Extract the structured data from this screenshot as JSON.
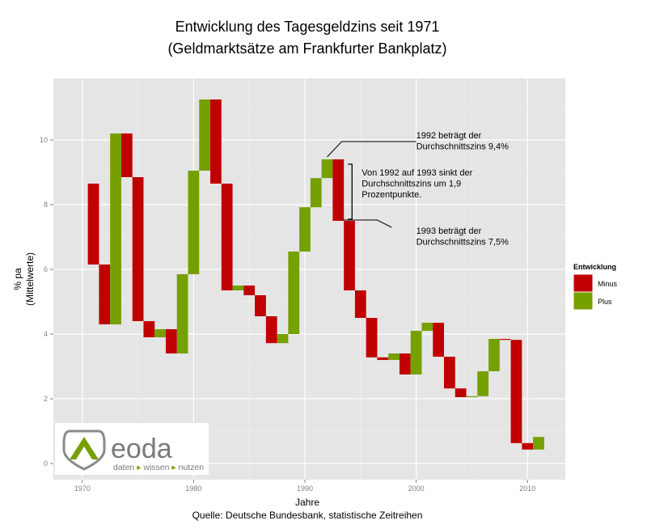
{
  "chart_data": {
    "type": "waterfall",
    "title": "Entwicklung des Tagesgeldzins seit 1971",
    "subtitle": "(Geldmarktsätze am Frankfurter Bankplatz)",
    "xlabel": "Jahre",
    "ylabel": "% pa",
    "ylabel_sub": "(Mittelwerte)",
    "source": "Quelle: Deutsche Bundesbank, statistische Zeitreihen",
    "xlim": [
      1967.4,
      2013.4
    ],
    "ylim": [
      -0.5,
      11.9
    ],
    "x_ticks": [
      1970,
      1980,
      1990,
      2000,
      2010
    ],
    "y_ticks": [
      0,
      2,
      4,
      6,
      8,
      10
    ],
    "grid": true,
    "legend": {
      "title": "Entwicklung",
      "position": "right",
      "entries": [
        {
          "label": "Minus",
          "color": "#c00000"
        },
        {
          "label": "Plus",
          "color": "#76a000"
        }
      ]
    },
    "colors": {
      "Minus": "#c00000",
      "Plus": "#76a000"
    },
    "bars": [
      {
        "year": 1971,
        "start": 8.65,
        "end": 6.15
      },
      {
        "year": 1972,
        "start": 6.15,
        "end": 4.3
      },
      {
        "year": 1973,
        "start": 4.3,
        "end": 10.2
      },
      {
        "year": 1974,
        "start": 10.2,
        "end": 8.85
      },
      {
        "year": 1975,
        "start": 8.85,
        "end": 4.4
      },
      {
        "year": 1976,
        "start": 4.4,
        "end": 3.9
      },
      {
        "year": 1977,
        "start": 3.9,
        "end": 4.15
      },
      {
        "year": 1978,
        "start": 4.15,
        "end": 3.4
      },
      {
        "year": 1979,
        "start": 3.4,
        "end": 5.85
      },
      {
        "year": 1980,
        "start": 5.85,
        "end": 9.05
      },
      {
        "year": 1981,
        "start": 9.05,
        "end": 11.25
      },
      {
        "year": 1982,
        "start": 11.25,
        "end": 8.65
      },
      {
        "year": 1983,
        "start": 8.65,
        "end": 5.35
      },
      {
        "year": 1984,
        "start": 5.35,
        "end": 5.5
      },
      {
        "year": 1985,
        "start": 5.5,
        "end": 5.2
      },
      {
        "year": 1986,
        "start": 5.2,
        "end": 4.55
      },
      {
        "year": 1987,
        "start": 4.55,
        "end": 3.72
      },
      {
        "year": 1988,
        "start": 3.72,
        "end": 4.0
      },
      {
        "year": 1989,
        "start": 4.0,
        "end": 6.55
      },
      {
        "year": 1990,
        "start": 6.55,
        "end": 7.92
      },
      {
        "year": 1991,
        "start": 7.92,
        "end": 8.82
      },
      {
        "year": 1992,
        "start": 8.82,
        "end": 9.4
      },
      {
        "year": 1993,
        "start": 9.4,
        "end": 7.5
      },
      {
        "year": 1994,
        "start": 7.5,
        "end": 5.35
      },
      {
        "year": 1995,
        "start": 5.35,
        "end": 4.5
      },
      {
        "year": 1996,
        "start": 4.5,
        "end": 3.28
      },
      {
        "year": 1997,
        "start": 3.28,
        "end": 3.2
      },
      {
        "year": 1998,
        "start": 3.2,
        "end": 3.4
      },
      {
        "year": 1999,
        "start": 3.4,
        "end": 2.75
      },
      {
        "year": 2000,
        "start": 2.75,
        "end": 4.1
      },
      {
        "year": 2001,
        "start": 4.1,
        "end": 4.35
      },
      {
        "year": 2002,
        "start": 4.35,
        "end": 3.3
      },
      {
        "year": 2003,
        "start": 3.3,
        "end": 2.32
      },
      {
        "year": 2004,
        "start": 2.32,
        "end": 2.05
      },
      {
        "year": 2005,
        "start": 2.05,
        "end": 2.08
      },
      {
        "year": 2006,
        "start": 2.08,
        "end": 2.85
      },
      {
        "year": 2007,
        "start": 2.85,
        "end": 3.85
      },
      {
        "year": 2008,
        "start": 3.85,
        "end": 3.82
      },
      {
        "year": 2009,
        "start": 3.82,
        "end": 0.63
      },
      {
        "year": 2010,
        "start": 0.63,
        "end": 0.43
      },
      {
        "year": 2011,
        "start": 0.43,
        "end": 0.82
      }
    ],
    "annotations": [
      {
        "lines": [
          "1992 beträgt der",
          "Durchschnittszins 9,4%"
        ]
      },
      {
        "lines": [
          "Von 1992 auf 1993 sinkt der",
          "Durchschnittszins um 1,9",
          "Prozentpunkte."
        ]
      },
      {
        "lines": [
          "1993 beträgt der",
          "Durchschnittszins 7,5%"
        ]
      }
    ]
  },
  "logo": {
    "name": "eoda",
    "tagline": [
      "daten",
      "wissen",
      "nutzen"
    ]
  }
}
